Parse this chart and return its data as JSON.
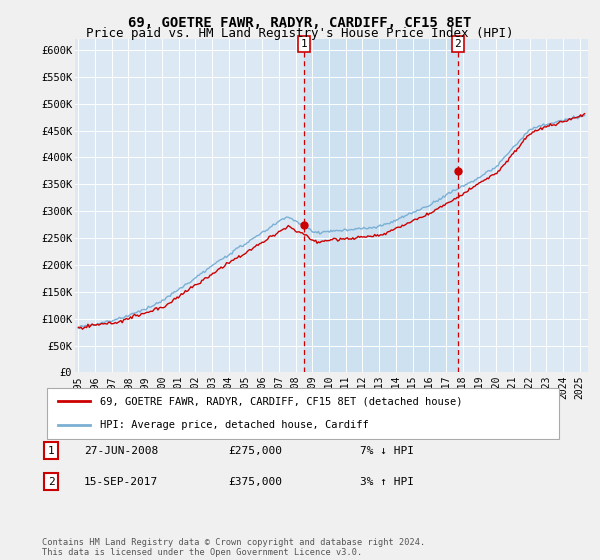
{
  "title": "69, GOETRE FAWR, RADYR, CARDIFF, CF15 8ET",
  "subtitle": "Price paid vs. HM Land Registry's House Price Index (HPI)",
  "ylim": [
    0,
    620000
  ],
  "yticks": [
    0,
    50000,
    100000,
    150000,
    200000,
    250000,
    300000,
    350000,
    400000,
    450000,
    500000,
    550000,
    600000
  ],
  "ytick_labels": [
    "£0",
    "£50K",
    "£100K",
    "£150K",
    "£200K",
    "£250K",
    "£300K",
    "£350K",
    "£400K",
    "£450K",
    "£500K",
    "£550K",
    "£600K"
  ],
  "x_start": 1994.8,
  "x_end": 2025.5,
  "xticks": [
    1995,
    1996,
    1997,
    1998,
    1999,
    2000,
    2001,
    2002,
    2003,
    2004,
    2005,
    2006,
    2007,
    2008,
    2009,
    2010,
    2011,
    2012,
    2013,
    2014,
    2015,
    2016,
    2017,
    2018,
    2019,
    2020,
    2021,
    2022,
    2023,
    2024,
    2025
  ],
  "background_color": "#f0f0f0",
  "plot_bg_color": "#dce9f5",
  "grid_color": "#ffffff",
  "hpi_color": "#7bafd4",
  "price_color": "#cc0000",
  "vline_color": "#cc0000",
  "highlight_color": "#c8dff0",
  "marker1_x": 2008.49,
  "marker1_y": 275000,
  "marker1_label": "1",
  "marker1_date": "27-JUN-2008",
  "marker1_price": "£275,000",
  "marker1_hpi": "7% ↓ HPI",
  "marker2_x": 2017.71,
  "marker2_y": 375000,
  "marker2_label": "2",
  "marker2_date": "15-SEP-2017",
  "marker2_price": "£375,000",
  "marker2_hpi": "3% ↑ HPI",
  "legend_label1": "69, GOETRE FAWR, RADYR, CARDIFF, CF15 8ET (detached house)",
  "legend_label2": "HPI: Average price, detached house, Cardiff",
  "footer": "Contains HM Land Registry data © Crown copyright and database right 2024.\nThis data is licensed under the Open Government Licence v3.0.",
  "title_fontsize": 10,
  "subtitle_fontsize": 9
}
